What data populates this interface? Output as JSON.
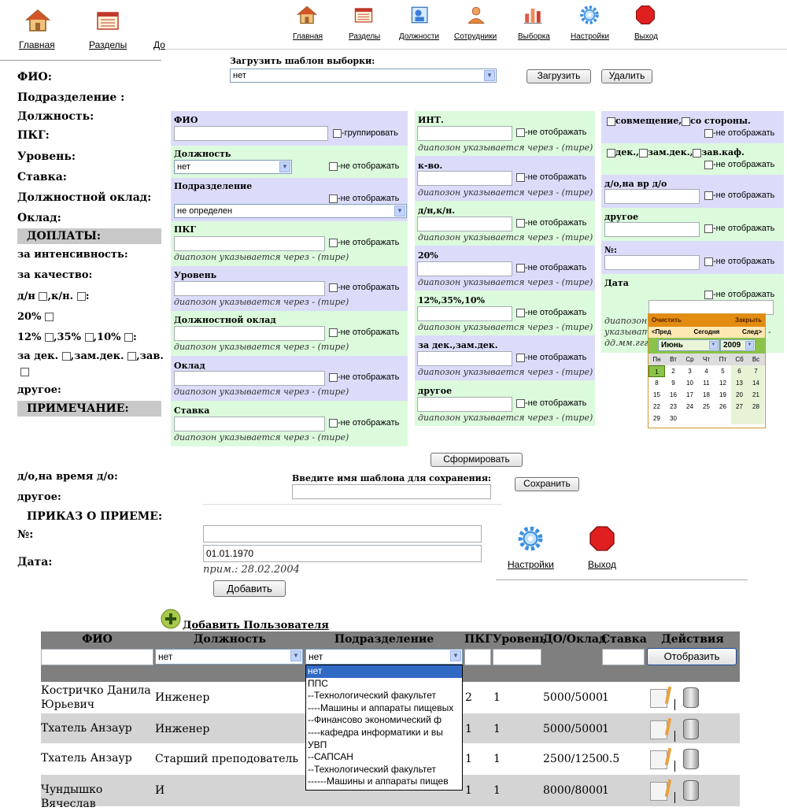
{
  "top_nav_left": {
    "items": [
      {
        "label": "Главная",
        "icon": "home-icon"
      },
      {
        "label": "Разделы",
        "icon": "sections-icon"
      },
      {
        "label": "До",
        "icon": "positions-icon"
      }
    ]
  },
  "top_nav": {
    "items": [
      {
        "label": "Главная",
        "icon": "home-icon"
      },
      {
        "label": "Разделы",
        "icon": "sections-icon"
      },
      {
        "label": "Должности",
        "icon": "positions-icon"
      },
      {
        "label": "Сотрудники",
        "icon": "employees-icon"
      },
      {
        "label": "Выборка",
        "icon": "selection-icon"
      },
      {
        "label": "Настройки",
        "icon": "settings-icon"
      },
      {
        "label": "Выход",
        "icon": "exit-icon"
      }
    ]
  },
  "left_form": {
    "labels": [
      "ФИО:",
      "Подразделение :",
      "Должность:",
      "ПКГ:",
      "Уровень:",
      "Ставка:",
      "Должностной оклад:",
      "Оклад:"
    ],
    "surcharges_header": "ДОПЛАТЫ:",
    "surcharges": {
      "intensity": "за интенсивность:",
      "quality": "за качество:",
      "dn": "д/н",
      "kn": ",к/н.",
      "colon": ":",
      "p20": "20%",
      "p12": "12%",
      "p35": ",35%",
      "p10": ",10%",
      "zadek": "за дек.",
      "zamdek": ",зам.дек.",
      "zav": ",зав.",
      "other": "другое:"
    },
    "note_header": "ПРИМЕЧАНИЕ:",
    "do_label": "д/о,на время д/о:",
    "other2": "другое:",
    "order_header": "ПРИКАЗ О ПРИЕМЕ:",
    "num_label": "№:",
    "date_label": "Дата:"
  },
  "template_load": {
    "label": "Загрузить шаблон выборки:",
    "value": "нет",
    "load_button": "Загрузить",
    "delete_button": "Удалить"
  },
  "filter": {
    "col1": {
      "fio": "ФИО",
      "group": "-группировать",
      "position": "Должность",
      "position_value": "нет",
      "not_show": "-не отображать",
      "department": "Подразделение",
      "department_value": "не определен",
      "pkg": "ПКГ",
      "range_hint": "диапозон указывается через - (тире)",
      "level": "Уровень",
      "salary": "Должностной оклад",
      "oklad": "Оклад",
      "rate": "Ставка"
    },
    "col2": {
      "int": "ИНТ.",
      "kvo": "к-во.",
      "dnkn": "д/н,к/н.",
      "p20": "20%",
      "p12_35_10": "12%,35%,10%",
      "zadek": "за дек.,зам.дек.",
      "other": "другое"
    },
    "col3": {
      "combined": "совмещение,",
      "outside": "со стороны.",
      "dek": "дек.,",
      "zamdek": "зам.дек.,",
      "zavkaf": "зав.каф.",
      "do": "д/о,на вр д/о",
      "other": "другое",
      "num": "№:",
      "date": "Дата",
      "hint1": "диапозон",
      "hint2": "указыват",
      "hint3": "дд.мм.гггг",
      "dash": "-"
    },
    "form_button": "Сформировать",
    "save_label": "Введите имя шаблона для сохранения:",
    "save_button": "Сохранить"
  },
  "calendar": {
    "clear": "Очистить",
    "close": "Закрыть",
    "prev": "<Пред",
    "today": "Сегодня",
    "next": "След>",
    "month": "Июнь",
    "year": "2009",
    "weekdays": [
      "Пн",
      "Вт",
      "Ср",
      "Чт",
      "Пт",
      "Сб",
      "Вс"
    ],
    "weeks": [
      [
        "1",
        "2",
        "3",
        "4",
        "5",
        "6",
        "7"
      ],
      [
        "8",
        "9",
        "10",
        "11",
        "12",
        "13",
        "14"
      ],
      [
        "15",
        "16",
        "17",
        "18",
        "19",
        "20",
        "21"
      ],
      [
        "22",
        "23",
        "24",
        "25",
        "26",
        "27",
        "28"
      ],
      [
        "29",
        "30",
        "",
        "",
        "",
        "",
        ""
      ]
    ]
  },
  "order": {
    "num_value": "",
    "date_value": "01.01.1970",
    "example": "прим.: 28.02.2004",
    "add_button": "Добавить"
  },
  "side_links": {
    "settings": "Настройки",
    "exit": "Выход"
  },
  "users": {
    "add_user": "Добавить Пользователя",
    "columns": [
      "ФИО",
      "Должность",
      "Подразделение",
      "ПКГ",
      "Уровень",
      "ДО/Оклад",
      "Ставка",
      "Действия"
    ],
    "filter_position": "нет",
    "filter_department": "нет",
    "show_button": "Отобразить",
    "rows": [
      {
        "fio": "Костричко Данила Юрьевич",
        "position": "Инженер",
        "pkg": "2",
        "level": "1",
        "salary": "5000/5000",
        "rate": "1"
      },
      {
        "fio": "Тхатель Анзаур",
        "position": "Инженер",
        "pkg": "1",
        "level": "1",
        "salary": "5000/5000",
        "rate": "1"
      },
      {
        "fio": "Тхатель Анзаур",
        "position": "Старший преподователь",
        "pkg": "1",
        "level": "1",
        "salary": "2500/1250",
        "rate": "0.5"
      },
      {
        "fio": "Чундышко Вячеслав",
        "position": "И",
        "pkg": "1",
        "level": "1",
        "salary": "8000/8000",
        "rate": "1"
      }
    ],
    "dropdown_options": [
      "нет",
      "ППС",
      "--Технологический факультет",
      "----Машины и аппараты пищевых",
      "--Финансово экономический ф",
      "----кафедра информатики и вы",
      "УВП",
      "--САПСАН",
      "--Технологический факультет",
      "------Машины и аппараты пищев"
    ]
  },
  "colors": {
    "blue_panel": "#dcdcfa",
    "green_panel": "#dcfadc",
    "table_header": "#7f7f7f",
    "row_alt": "#d4d4d4",
    "calendar_header": "#e38c12",
    "calendar_green": "#8bc34a",
    "dropdown_selected": "#316ac5"
  }
}
